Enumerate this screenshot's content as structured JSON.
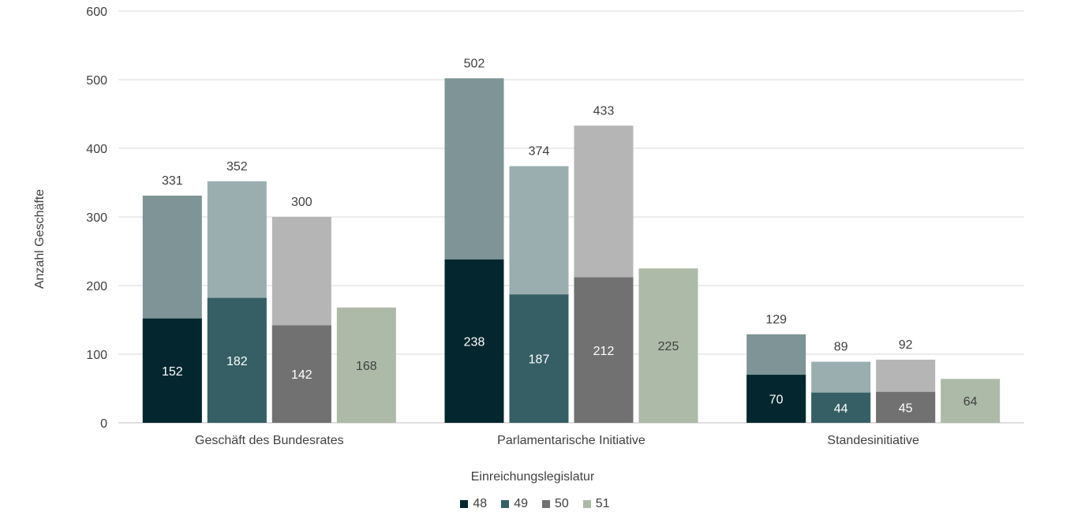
{
  "chart_data": {
    "type": "bar",
    "stacked_overlay": true,
    "categories": [
      "Geschäft des Bundesrates",
      "Parlamentarische Initiative",
      "Standesinitiative"
    ],
    "xlabel": "Einreichungslegislatur",
    "ylabel": "Anzahl Geschäfte",
    "ylim": [
      0,
      600
    ],
    "yticks": [
      0,
      100,
      200,
      300,
      400,
      500,
      600
    ],
    "grid": true,
    "legend_position": "bottom",
    "series": [
      {
        "name": "48",
        "color": "#04272f",
        "light_color": "#7e9496",
        "values": [
          152,
          238,
          70
        ],
        "totals": [
          331,
          502,
          129
        ]
      },
      {
        "name": "49",
        "color": "#355f65",
        "light_color": "#9aaeb0",
        "values": [
          182,
          187,
          44
        ],
        "totals": [
          352,
          374,
          89
        ]
      },
      {
        "name": "50",
        "color": "#717171",
        "light_color": "#b5b5b5",
        "values": [
          142,
          212,
          45
        ],
        "totals": [
          300,
          433,
          92
        ]
      },
      {
        "name": "51",
        "color": "#adbaa8",
        "light_color": "#adbaa8",
        "values": [
          168,
          225,
          64
        ],
        "totals": [
          null,
          null,
          null
        ]
      }
    ]
  }
}
